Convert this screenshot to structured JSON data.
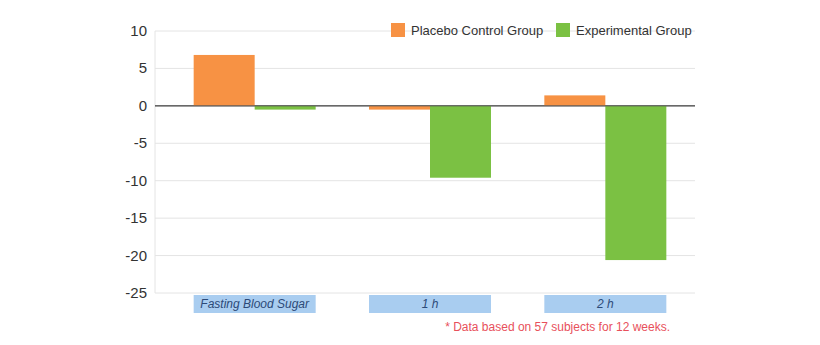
{
  "chart_data": {
    "type": "bar",
    "categories": [
      "Fasting Blood Sugar",
      "1 h",
      "2 h"
    ],
    "series": [
      {
        "name": "Placebo Control Group",
        "color": "#f79244",
        "values": [
          6.8,
          -0.5,
          1.4
        ]
      },
      {
        "name": "Experimental Group",
        "color": "#7bc143",
        "values": [
          -0.5,
          -9.6,
          -20.6
        ]
      }
    ],
    "ylim": [
      -25,
      10
    ],
    "yticks": [
      -25,
      -20,
      -15,
      -10,
      -5,
      0,
      5,
      10
    ],
    "grid": true,
    "legend": "top-right",
    "annotations": [
      "* Data based on 57 subjects for 12 weeks."
    ]
  }
}
